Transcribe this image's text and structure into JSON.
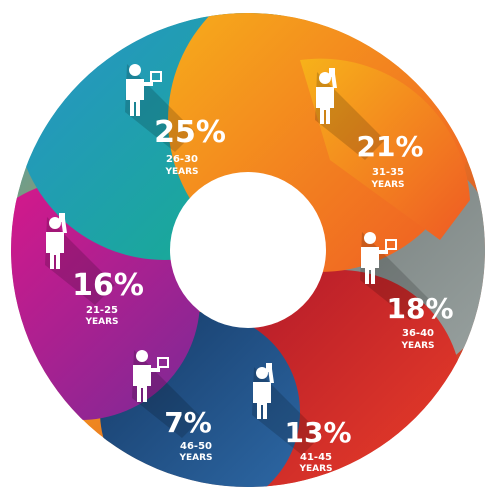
{
  "chart_data": {
    "type": "pie",
    "style": "donut with overlapping circular segment lobes, each with a person icon",
    "categories": [
      "26-30 YEARS",
      "31-35 YEARS",
      "36-40 YEARS",
      "41-45 YEARS",
      "46-50 YEARS",
      "21-25 YEARS"
    ],
    "series": [
      {
        "values": [
          25,
          21,
          18,
          13,
          7,
          16
        ]
      }
    ],
    "segments": [
      {
        "percent_label": "25%",
        "range": "26-30",
        "unit": "YEARS",
        "value": 25,
        "color": "#1aa89c",
        "icon": "person-with-laptop-icon"
      },
      {
        "percent_label": "21%",
        "range": "31-35",
        "unit": "YEARS",
        "value": 21,
        "color": "#f0701e",
        "icon": "person-on-phone-icon"
      },
      {
        "percent_label": "18%",
        "range": "36-40",
        "unit": "YEARS",
        "value": 18,
        "color": "#8a9392",
        "icon": "person-with-laptop-icon"
      },
      {
        "percent_label": "13%",
        "range": "41-45",
        "unit": "YEARS",
        "value": 13,
        "color": "#d23226",
        "icon": "person-on-phone-icon"
      },
      {
        "percent_label": "7%",
        "range": "46-50",
        "unit": "YEARS",
        "value": 7,
        "color": "#1f4e7a",
        "icon": "person-with-laptop-icon"
      },
      {
        "percent_label": "16%",
        "range": "21-25",
        "unit": "YEARS",
        "value": 16,
        "color": "#b51c8a",
        "icon": "person-on-phone-icon"
      }
    ],
    "title": "",
    "legend": "none",
    "grid": false
  }
}
